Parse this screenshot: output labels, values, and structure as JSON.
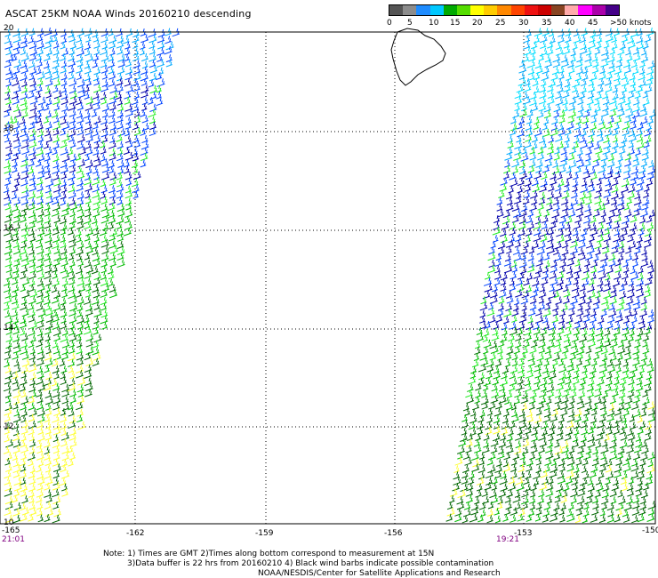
{
  "title": "ASCAT 25KM NOAA Winds 20160210 descending",
  "colorbar": {
    "colors": [
      "#555555",
      "#8c8c8c",
      "#1e8cff",
      "#00c8ff",
      "#00aa00",
      "#55dd00",
      "#ffff00",
      "#ffcc00",
      "#ff8800",
      "#ff4400",
      "#ee1111",
      "#cc0000",
      "#884422",
      "#ffaaaa",
      "#ff00ff",
      "#aa00aa",
      "#440088"
    ],
    "labels": [
      "0",
      "5",
      "10",
      "15",
      "20",
      "25",
      "30",
      "35",
      "40",
      "45",
      ">50 knots"
    ]
  },
  "map": {
    "lon_range": [
      -165,
      -150
    ],
    "lat_range": [
      10,
      20
    ],
    "lat_labels": [
      "20",
      "18",
      "16",
      "14",
      "12",
      "10"
    ],
    "lon_labels": [
      "-165",
      "-162",
      "-159",
      "-156",
      "-153",
      "-150"
    ],
    "times": [
      "21:01",
      "19:21"
    ],
    "wind_colors": {
      "light": "#ffff33",
      "green_dark": "#006600",
      "green": "#00bb00",
      "green_bright": "#22ee22",
      "blue_dark": "#0000aa",
      "blue": "#0044ff",
      "cyan": "#00aaff",
      "cyan_light": "#00ddff"
    }
  },
  "notes": {
    "line1": "Note: 1) Times are GMT 2)Times along bottom correspond to measurement at 15N",
    "line2": "3)Data buffer is 22 hrs from 20160210 4) Black wind barbs indicate possible contamination",
    "line3": "NOAA/NESDIS/Center for Satellite Applications and Research"
  }
}
